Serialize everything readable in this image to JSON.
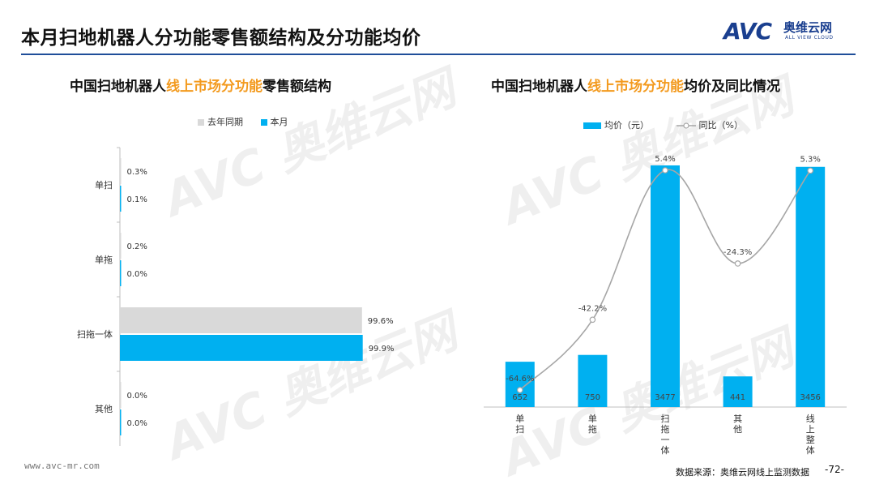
{
  "header": {
    "title": "本月扫地机器人分功能零售额结构及分功能均价",
    "logo_mark": "AVC",
    "logo_cn": "奥维云网",
    "logo_en": "ALL VIEW CLOUD"
  },
  "colors": {
    "accent_blue": "#00b0f0",
    "gray_bar": "#d9d9d9",
    "highlight": "#f39a1e",
    "rule": "#1f4e99"
  },
  "chart_data": [
    {
      "type": "bar",
      "orientation": "horizontal",
      "title_parts": [
        "中国扫地机器人",
        "线上市场分功能",
        "零售额结构"
      ],
      "categories": [
        "单扫",
        "单拖",
        "扫拖一体",
        "其他"
      ],
      "series": [
        {
          "name": "去年同期",
          "values": [
            0.3,
            0.2,
            99.6,
            0.0
          ],
          "labels": [
            "0.3%",
            "0.2%",
            "99.6%",
            "0.0%"
          ],
          "color": "#d9d9d9"
        },
        {
          "name": "本月",
          "values": [
            0.1,
            0.0,
            99.9,
            0.0
          ],
          "labels": [
            "0.1%",
            "0.0%",
            "99.9%",
            "0.0%"
          ],
          "color": "#00b0f0"
        }
      ],
      "xlim": [
        0,
        100
      ]
    },
    {
      "type": "bar+line",
      "title_parts": [
        "中国扫地机器人",
        "线上市场分功能",
        "均价及同比情况"
      ],
      "categories": [
        "单扫",
        "单拖",
        "扫拖一体",
        "其他",
        "线上整体"
      ],
      "bar_series": {
        "name": "均价（元）",
        "values": [
          652,
          750,
          3477,
          441,
          3456
        ],
        "labels": [
          "652",
          "750",
          "3477",
          "441",
          "3456"
        ],
        "color": "#00b0f0"
      },
      "line_series": {
        "name": "同比（%）",
        "values": [
          -64.6,
          -42.2,
          5.4,
          -24.3,
          5.3
        ],
        "labels": [
          "-64.6%",
          "-42.2%",
          "5.4%",
          "-24.3%",
          "5.3%"
        ],
        "color": "#a6a6a6"
      }
    }
  ],
  "footer": {
    "url": "www.avc-mr.com",
    "source": "数据来源：奥维云网线上监测数据",
    "page": "-72-"
  }
}
